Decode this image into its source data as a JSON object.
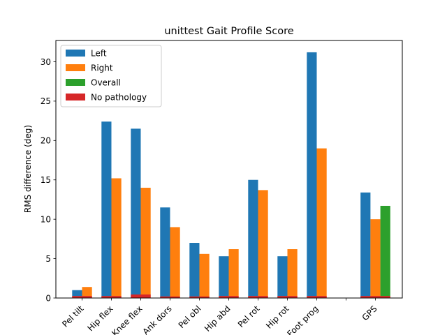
{
  "chart_data": {
    "type": "bar",
    "title": "unittest Gait Profile Score",
    "xlabel": "",
    "ylabel": "RMS difference (deg)",
    "ylim": [
      0,
      32.7
    ],
    "yticks": [
      0,
      5,
      10,
      15,
      20,
      25,
      30
    ],
    "grid": false,
    "legend_position": "top-left",
    "categories": [
      "Pel tilt",
      "Hip flex",
      "Knee flex",
      "Ank dors",
      "Pel obl",
      "Hip abd",
      "Pel rot",
      "Hip rot",
      "Foot prog",
      "",
      "GPS"
    ],
    "series": [
      {
        "name": "Left",
        "color": "#1f77b4",
        "values": [
          1.0,
          22.4,
          21.5,
          11.5,
          7.0,
          5.3,
          15.0,
          5.3,
          31.2,
          null,
          13.4
        ]
      },
      {
        "name": "Right",
        "color": "#ff7f0e",
        "values": [
          1.4,
          15.2,
          14.0,
          9.0,
          5.6,
          6.2,
          13.7,
          6.2,
          19.0,
          null,
          10.0
        ]
      },
      {
        "name": "Overall",
        "color": "#2ca02c",
        "values": [
          null,
          null,
          null,
          null,
          null,
          null,
          null,
          null,
          null,
          null,
          11.7
        ]
      },
      {
        "name": "No pathology",
        "color": "#d62728",
        "values": [
          0.25,
          0.25,
          0.45,
          0.2,
          0.2,
          0.25,
          0.25,
          0.25,
          0.25,
          null,
          0.25
        ]
      }
    ]
  }
}
